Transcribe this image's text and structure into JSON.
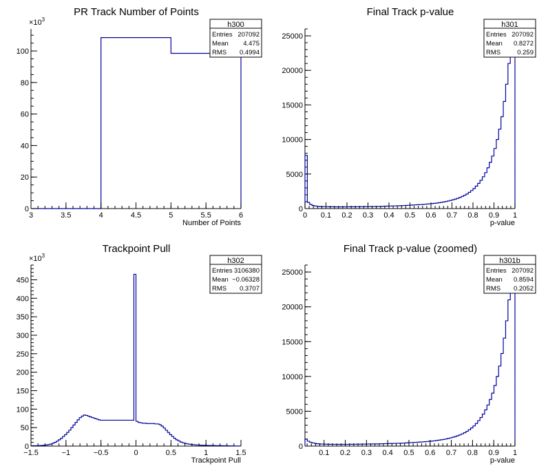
{
  "colors": {
    "line": "#00009c",
    "axis": "#000000",
    "background": "#ffffff"
  },
  "chart_data": [
    {
      "type": "histogram",
      "title": "PR Track Number of Points",
      "xlabel": "Number of Points",
      "ylabel": "",
      "xlim": [
        3,
        6
      ],
      "ylim": [
        0,
        114000
      ],
      "x_ticks": [
        "3",
        "3.5",
        "4",
        "4.5",
        "5",
        "5.5",
        "6"
      ],
      "y_ticks": [
        "0",
        "20",
        "40",
        "60",
        "80",
        "100"
      ],
      "exponent_label": "×10",
      "exponent_power": "3",
      "stats": {
        "name": "h300",
        "entries_label": "Entries",
        "entries": "207092",
        "mean_label": "Mean",
        "mean": "4.475",
        "rms_label": "RMS",
        "rms": "0.4994"
      },
      "bin_edges": [
        3,
        4,
        5,
        6
      ],
      "values": [
        0,
        108500,
        98500
      ]
    },
    {
      "type": "histogram",
      "title": "Final Track p-value",
      "xlabel": "p-value",
      "ylabel": "",
      "xlim": [
        0,
        1
      ],
      "ylim": [
        0,
        26000
      ],
      "x_ticks": [
        "0",
        "0.1",
        "0.2",
        "0.3",
        "0.4",
        "0.5",
        "0.6",
        "0.7",
        "0.8",
        "0.9",
        "1"
      ],
      "y_ticks": [
        "0",
        "5000",
        "10000",
        "15000",
        "20000",
        "25000"
      ],
      "stats": {
        "name": "h301",
        "entries_label": "Entries",
        "entries": "207092",
        "mean_label": "Mean",
        "mean": "0.8272",
        "rms_label": "RMS",
        "rms": "0.259"
      },
      "bin_edges_range": [
        0,
        1
      ],
      "values": [
        7700,
        900,
        600,
        450,
        380,
        330,
        300,
        290,
        280,
        270,
        260,
        260,
        255,
        250,
        250,
        250,
        250,
        250,
        255,
        260,
        260,
        265,
        270,
        275,
        280,
        285,
        290,
        295,
        300,
        305,
        310,
        320,
        330,
        340,
        350,
        360,
        370,
        380,
        390,
        400,
        410,
        420,
        440,
        460,
        480,
        500,
        520,
        540,
        560,
        580,
        600,
        630,
        660,
        690,
        720,
        760,
        800,
        850,
        900,
        960,
        1020,
        1100,
        1180,
        1270,
        1370,
        1480,
        1610,
        1760,
        1930,
        2120,
        2350,
        2610,
        2900,
        3250,
        3650,
        4100,
        4600,
        5200,
        5900,
        6700,
        7600,
        8700,
        10000,
        11500,
        13300,
        15500,
        18000,
        21000,
        24000,
        26000
      ]
    },
    {
      "type": "histogram",
      "title": "Trackpoint Pull",
      "xlabel": "Trackpoint Pull",
      "ylabel": "",
      "xlim": [
        -1.5,
        1.5
      ],
      "ylim": [
        0,
        490000
      ],
      "x_ticks": [
        "−1.5",
        "−1",
        "−0.5",
        "0",
        "0.5",
        "1",
        "1.5"
      ],
      "y_ticks": [
        "0",
        "50",
        "100",
        "150",
        "200",
        "250",
        "300",
        "350",
        "400",
        "450"
      ],
      "exponent_label": "×10",
      "exponent_power": "3",
      "stats": {
        "name": "h302",
        "entries_label": "Entries",
        "entries": "3106380",
        "mean_label": "Mean",
        "mean": "−0.06328",
        "rms_label": "RMS",
        "rms": "0.3707"
      },
      "bin_edges_range": [
        -1.5,
        1.5
      ],
      "values": [
        1000,
        1000,
        1000,
        1200,
        1500,
        1800,
        2300,
        3000,
        4000,
        5500,
        7500,
        10000,
        13000,
        17000,
        21000,
        26000,
        31000,
        37000,
        43000,
        50000,
        57000,
        64000,
        71000,
        77000,
        81000,
        84000,
        83000,
        81000,
        79000,
        77000,
        75000,
        73000,
        71000,
        70000,
        70000,
        70000,
        70000,
        70000,
        70000,
        70000,
        70000,
        70000,
        70000,
        70000,
        70000,
        70000,
        70000,
        70000,
        70000,
        465000,
        67000,
        64000,
        63000,
        62000,
        62000,
        61000,
        61000,
        61000,
        61000,
        60000,
        60000,
        58000,
        54000,
        49000,
        43000,
        37000,
        31000,
        26000,
        21000,
        17000,
        14000,
        11000,
        9000,
        7500,
        6200,
        5200,
        4400,
        3800,
        3300,
        2900,
        2600,
        2300,
        2100,
        1900,
        1700,
        1600,
        1500,
        1400,
        1300,
        1200,
        1100,
        1000,
        900,
        800,
        700,
        600,
        500,
        400,
        300,
        200
      ],
      "peak_bins": [
        48,
        49,
        50
      ]
    },
    {
      "type": "histogram",
      "title": "Final Track p-value (zoomed)",
      "xlabel": "p-value",
      "ylabel": "",
      "xlim": [
        0.01,
        1
      ],
      "ylim": [
        0,
        26000
      ],
      "x_ticks": [
        "0.1",
        "0.2",
        "0.3",
        "0.4",
        "0.5",
        "0.6",
        "0.7",
        "0.8",
        "0.9",
        "1"
      ],
      "y_ticks": [
        "0",
        "5000",
        "10000",
        "15000",
        "20000",
        "25000"
      ],
      "stats": {
        "name": "h301b",
        "entries_label": "Entries",
        "entries": "207092",
        "mean_label": "Mean",
        "mean": "0.8594",
        "rms_label": "RMS",
        "rms": "0.2052"
      },
      "bin_edges_range": [
        0.01,
        1
      ],
      "values": [
        1000,
        700,
        550,
        450,
        380,
        330,
        300,
        290,
        280,
        270,
        260,
        260,
        255,
        250,
        250,
        250,
        250,
        250,
        255,
        260,
        260,
        265,
        270,
        275,
        280,
        285,
        290,
        295,
        300,
        305,
        310,
        320,
        330,
        340,
        350,
        360,
        370,
        380,
        390,
        400,
        410,
        420,
        440,
        460,
        480,
        500,
        520,
        540,
        560,
        580,
        600,
        630,
        660,
        690,
        720,
        760,
        800,
        850,
        900,
        960,
        1020,
        1100,
        1180,
        1270,
        1370,
        1480,
        1610,
        1760,
        1930,
        2120,
        2350,
        2610,
        2900,
        3250,
        3650,
        4100,
        4600,
        5200,
        5900,
        6700,
        7600,
        8700,
        10000,
        11500,
        13300,
        15500,
        18000,
        21000,
        24000,
        26000
      ]
    }
  ]
}
